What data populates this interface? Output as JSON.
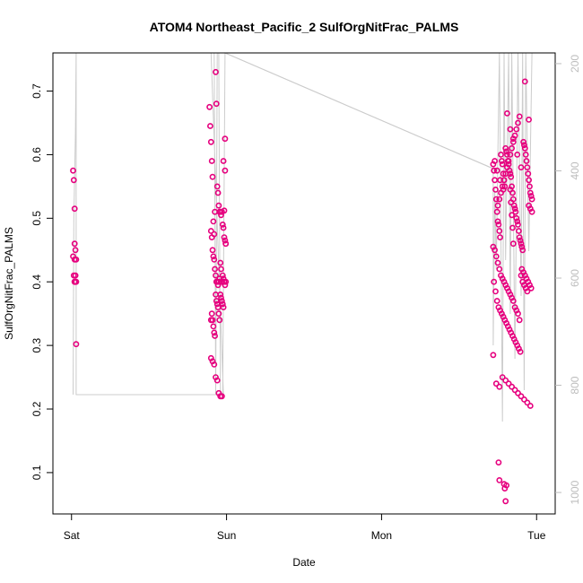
{
  "chart_data": {
    "type": "scatter",
    "title": "ATOM4 Northeast_Pacific_2 SulfOrgNitFrac_PALMS",
    "xlabel": "Date",
    "ylabel": "SulfOrgNitFrac_PALMS",
    "x_ticks": [
      {
        "value": 0.0,
        "label": "Sat"
      },
      {
        "value": 1.0,
        "label": "Sun"
      },
      {
        "value": 2.0,
        "label": "Mon"
      },
      {
        "value": 3.0,
        "label": "Tue"
      }
    ],
    "xlim": [
      -0.12,
      3.12
    ],
    "ylim": [
      0.035,
      0.76
    ],
    "y_ticks": [
      0.1,
      0.2,
      0.3,
      0.4,
      0.5,
      0.6,
      0.7
    ],
    "y2_ticks": [
      200,
      400,
      600,
      800,
      1000
    ],
    "y2lim": [
      1040,
      180
    ],
    "marker_color": "#e6007e",
    "line_color": "#cccccc",
    "grid": false,
    "series": [
      {
        "x": [
          0.01,
          0.015,
          0.02,
          0.02,
          0.025,
          0.01,
          0.02,
          0.03,
          0.015,
          0.025,
          0.02,
          0.03,
          0.02,
          0.025,
          0.03,
          0.89,
          0.895,
          0.9,
          0.905,
          0.91,
          0.915,
          0.92,
          0.925,
          0.93,
          0.935,
          0.94,
          0.945,
          0.95,
          0.955,
          0.96,
          0.965,
          0.97,
          0.975,
          0.98,
          0.985,
          0.99,
          0.995,
          0.9,
          0.905,
          0.91,
          0.915,
          0.92,
          0.925,
          0.93,
          0.935,
          0.94,
          0.945,
          0.95,
          0.955,
          0.96,
          0.965,
          0.97,
          0.975,
          0.98,
          0.985,
          0.99,
          0.995,
          0.9,
          0.905,
          0.91,
          0.915,
          0.92,
          0.925,
          0.93,
          0.935,
          0.94,
          0.945,
          0.95,
          0.955,
          0.96,
          0.965,
          0.97,
          0.975,
          0.98,
          0.985,
          0.99,
          0.995,
          0.9,
          0.91,
          0.92,
          0.93,
          0.94,
          0.95,
          0.96,
          0.97,
          0.98,
          0.99,
          2.72,
          2.725,
          2.73,
          2.735,
          2.74,
          2.745,
          2.75,
          2.755,
          2.76,
          2.765,
          2.77,
          2.775,
          2.78,
          2.785,
          2.79,
          2.795,
          2.8,
          2.805,
          2.81,
          2.815,
          2.82,
          2.825,
          2.83,
          2.835,
          2.84,
          2.845,
          2.85,
          2.855,
          2.86,
          2.865,
          2.87,
          2.875,
          2.88,
          2.885,
          2.89,
          2.895,
          2.9,
          2.905,
          2.91,
          2.915,
          2.92,
          2.925,
          2.93,
          2.935,
          2.94,
          2.945,
          2.95,
          2.955,
          2.96,
          2.965,
          2.97,
          2.72,
          2.73,
          2.74,
          2.75,
          2.76,
          2.77,
          2.78,
          2.79,
          2.8,
          2.81,
          2.82,
          2.83,
          2.84,
          2.85,
          2.86,
          2.87,
          2.88,
          2.89,
          2.9,
          2.91,
          2.92,
          2.93,
          2.94,
          2.95,
          2.96,
          2.97,
          2.725,
          2.735,
          2.745,
          2.755,
          2.765,
          2.775,
          2.785,
          2.795,
          2.805,
          2.815,
          2.825,
          2.835,
          2.845,
          2.855,
          2.865,
          2.875,
          2.885,
          2.895,
          2.905,
          2.915,
          2.925,
          2.935,
          2.945,
          2.955,
          2.965,
          2.72,
          2.74,
          2.76,
          2.78,
          2.8,
          2.82,
          2.84,
          2.86,
          2.88,
          2.9,
          2.92,
          2.94,
          2.96,
          2.75,
          2.76,
          2.77,
          2.78,
          2.79,
          2.8,
          2.81,
          2.82,
          2.83,
          2.84,
          2.85,
          2.86,
          2.87,
          2.88,
          2.89,
          2.73,
          2.745,
          2.765,
          2.785,
          2.81,
          2.83,
          2.85,
          2.875,
          2.9,
          2.925,
          2.95,
          2.755,
          2.76,
          2.79,
          2.795,
          2.8,
          2.805,
          2.83,
          2.835,
          2.84,
          2.845,
          2.85
        ],
        "y": [
          0.575,
          0.56,
          0.515,
          0.46,
          0.45,
          0.44,
          0.435,
          0.435,
          0.41,
          0.41,
          0.4,
          0.4,
          0.4,
          0.4,
          0.302,
          0.675,
          0.645,
          0.62,
          0.59,
          0.565,
          0.495,
          0.475,
          0.51,
          0.73,
          0.68,
          0.55,
          0.54,
          0.52,
          0.51,
          0.51,
          0.505,
          0.51,
          0.49,
          0.485,
          0.512,
          0.575,
          0.46,
          0.48,
          0.47,
          0.45,
          0.44,
          0.435,
          0.42,
          0.41,
          0.4,
          0.4,
          0.395,
          0.4,
          0.405,
          0.43,
          0.42,
          0.4,
          0.41,
          0.405,
          0.4,
          0.395,
          0.4,
          0.34,
          0.35,
          0.34,
          0.33,
          0.32,
          0.315,
          0.38,
          0.37,
          0.365,
          0.36,
          0.35,
          0.34,
          0.38,
          0.375,
          0.37,
          0.365,
          0.36,
          0.47,
          0.465,
          0.46,
          0.28,
          0.275,
          0.27,
          0.25,
          0.245,
          0.225,
          0.22,
          0.22,
          0.59,
          0.625,
          0.585,
          0.575,
          0.56,
          0.545,
          0.53,
          0.51,
          0.495,
          0.49,
          0.48,
          0.47,
          0.6,
          0.59,
          0.585,
          0.57,
          0.56,
          0.55,
          0.61,
          0.605,
          0.6,
          0.59,
          0.585,
          0.575,
          0.57,
          0.565,
          0.55,
          0.54,
          0.53,
          0.52,
          0.515,
          0.51,
          0.5,
          0.495,
          0.49,
          0.48,
          0.47,
          0.465,
          0.46,
          0.455,
          0.45,
          0.62,
          0.615,
          0.61,
          0.6,
          0.59,
          0.58,
          0.57,
          0.56,
          0.55,
          0.54,
          0.535,
          0.53,
          0.455,
          0.45,
          0.44,
          0.43,
          0.42,
          0.41,
          0.405,
          0.4,
          0.395,
          0.39,
          0.385,
          0.38,
          0.375,
          0.37,
          0.36,
          0.355,
          0.35,
          0.34,
          0.41,
          0.4,
          0.395,
          0.39,
          0.385,
          0.52,
          0.515,
          0.51,
          0.4,
          0.385,
          0.37,
          0.36,
          0.355,
          0.35,
          0.345,
          0.34,
          0.335,
          0.33,
          0.325,
          0.32,
          0.315,
          0.31,
          0.305,
          0.3,
          0.295,
          0.29,
          0.42,
          0.415,
          0.41,
          0.405,
          0.4,
          0.395,
          0.39,
          0.285,
          0.24,
          0.235,
          0.25,
          0.245,
          0.24,
          0.235,
          0.23,
          0.225,
          0.22,
          0.215,
          0.21,
          0.205,
          0.52,
          0.53,
          0.54,
          0.55,
          0.56,
          0.57,
          0.58,
          0.59,
          0.6,
          0.61,
          0.62,
          0.63,
          0.64,
          0.65,
          0.66,
          0.59,
          0.575,
          0.56,
          0.545,
          0.665,
          0.64,
          0.625,
          0.6,
          0.58,
          0.715,
          0.655,
          0.116,
          0.088,
          0.082,
          0.075,
          0.055,
          0.08,
          0.545,
          0.525,
          0.505,
          0.485,
          0.46
        ]
      }
    ]
  }
}
